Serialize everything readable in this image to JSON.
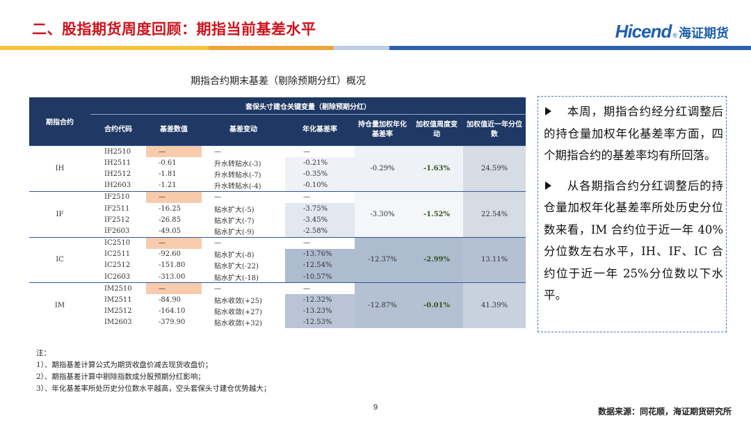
{
  "header": {
    "title": "二、股指期货周度回顾：期指当前基差水平",
    "logo_brand": "Hicend",
    "logo_mark": "®",
    "logo_name": "海证期货"
  },
  "table": {
    "caption": "期指合约期末基差（剔除预期分红）概况",
    "row_header": "期指合约",
    "group_header": "套保头寸建仓关键变量（剔除预期分红）",
    "columns": [
      "合约代码",
      "基差数值",
      "基差变动",
      "年化基差率",
      "持仓量加权年化基差率",
      "加权值周度变动",
      "加权值近一年分位数"
    ],
    "groups": [
      {
        "name": "IH",
        "weighted": "-0.29%",
        "weekly_change": "-1.63%",
        "percentile": "24.59%",
        "rows": [
          [
            "IH2510",
            "—",
            "—",
            "—"
          ],
          [
            "IH2511",
            "-0.61",
            "升水转贴水(-3)",
            "-0.21%"
          ],
          [
            "IH2512",
            "-1.81",
            "升水转贴水(-7)",
            "-0.35%"
          ],
          [
            "IH2603",
            "-1.21",
            "升水转贴水(-4)",
            "-0.10%"
          ]
        ]
      },
      {
        "name": "IF",
        "weighted": "-3.30%",
        "weekly_change": "-1.52%",
        "percentile": "22.54%",
        "rows": [
          [
            "IF2510",
            "—",
            "—",
            "—"
          ],
          [
            "IF2511",
            "-16.25",
            "贴水扩大(-5)",
            "-3.75%"
          ],
          [
            "IF2512",
            "-26.85",
            "贴水扩大(-7)",
            "-3.45%"
          ],
          [
            "IF2603",
            "-49.05",
            "贴水扩大(-9)",
            "-2.58%"
          ]
        ]
      },
      {
        "name": "IC",
        "weighted": "-12.37%",
        "weekly_change": "-2.99%",
        "percentile": "13.11%",
        "rows": [
          [
            "IC2510",
            "—",
            "—",
            "—"
          ],
          [
            "IC2511",
            "-92.60",
            "贴水扩大(-8)",
            "-13.76%"
          ],
          [
            "IC2512",
            "-151.80",
            "贴水扩大(-22)",
            "-12.54%"
          ],
          [
            "IC2603",
            "-313.00",
            "贴水扩大(-18)",
            "-10.57%"
          ]
        ]
      },
      {
        "name": "IM",
        "weighted": "-12.87%",
        "weekly_change": "-0.01%",
        "percentile": "41.39%",
        "rows": [
          [
            "IM2510",
            "—",
            "—",
            "—"
          ],
          [
            "IM2511",
            "-84.90",
            "贴水收敛(+25)",
            "-12.32%"
          ],
          [
            "IM2512",
            "-164.10",
            "贴水收敛(+27)",
            "-13.23%"
          ],
          [
            "IM2603",
            "-379.90",
            "贴水收敛(+32)",
            "-12.53%"
          ]
        ]
      }
    ]
  },
  "summary": [
    "本周，期指合约经分红调整后的持仓量加权年化基差率方面，四个期指合约的基差率均有所回落。",
    "从各期指合约分红调整后的持仓量加权年化基差率所处历史分位数来看，IM 合约位于近一年 40%分位数左右水平，IH、IF、IC 合约位于近一年 25%分位数以下水平。"
  ],
  "notes": {
    "heading": "注：",
    "items": [
      "1）、期指基差计算公式为期货收盘价减去现货收盘价；",
      "2）、期指基差计算中剔除指数成分股预期分红影响；",
      "3）、年化基差率所处历史分位数水平越高，空头套保头寸建仓优势越大；"
    ]
  },
  "footer": {
    "page": "9",
    "source": "数据来源：同花顺，海证期货研究所"
  }
}
